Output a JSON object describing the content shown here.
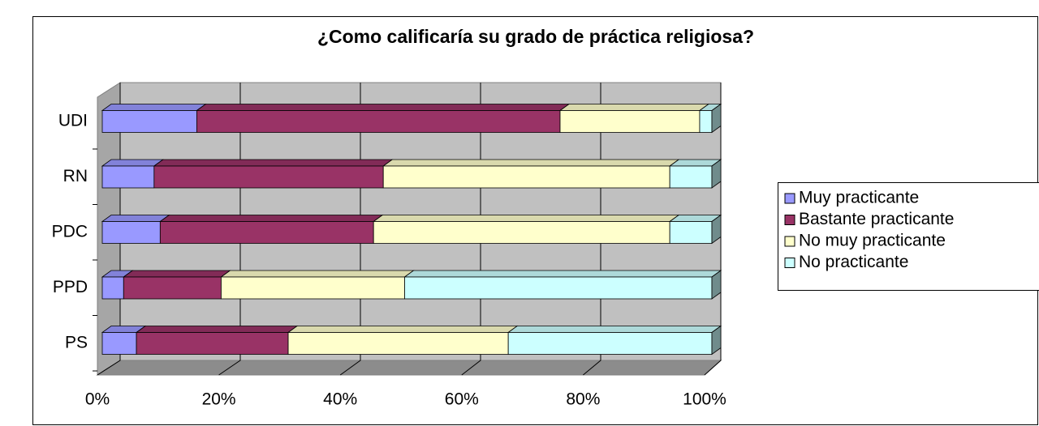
{
  "chart_data": {
    "type": "bar",
    "orientation": "horizontal",
    "stacked": true,
    "percent": true,
    "three_d": true,
    "title": "¿Como calificaría su grado de práctica religiosa?",
    "categories": [
      "UDI",
      "RN",
      "PDC",
      "PPD",
      "PS"
    ],
    "series": [
      {
        "name": "Muy practicante",
        "color": "#9999ff",
        "values": [
          15.5,
          8.5,
          9.5,
          3.5,
          5.6
        ]
      },
      {
        "name": "Bastante practicante",
        "color": "#993366",
        "values": [
          59.6,
          37.6,
          35.0,
          16.0,
          24.9
        ]
      },
      {
        "name": "No muy practicante",
        "color": "#ffffcc",
        "values": [
          22.9,
          47.0,
          48.6,
          30.1,
          36.1
        ]
      },
      {
        "name": "No practicante",
        "color": "#ccffff",
        "values": [
          2.0,
          6.9,
          6.9,
          50.4,
          33.4
        ]
      }
    ],
    "xlim": [
      0,
      100
    ],
    "xticks": [
      {
        "value": 0,
        "label": "0%"
      },
      {
        "value": 20,
        "label": "20%"
      },
      {
        "value": 40,
        "label": "40%"
      },
      {
        "value": 60,
        "label": "60%"
      },
      {
        "value": 80,
        "label": "80%"
      },
      {
        "value": 100,
        "label": "100%"
      }
    ],
    "grid": true,
    "legend": "right"
  }
}
